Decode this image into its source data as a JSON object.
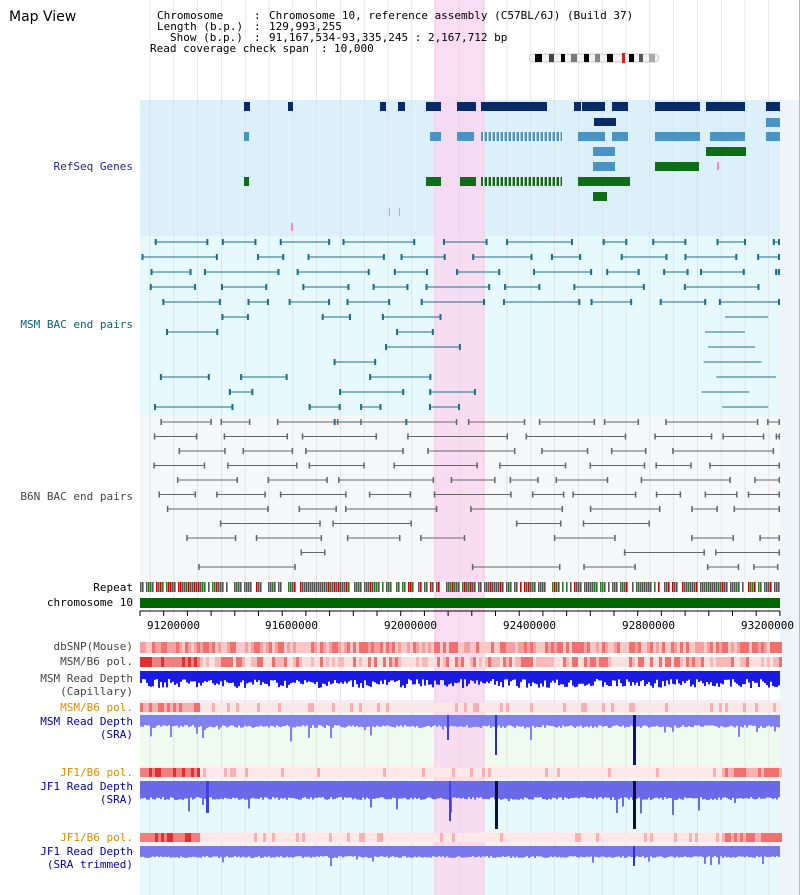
{
  "app": {
    "title": "Map View"
  },
  "info": {
    "chromosome_key": "Chromosome",
    "chromosome_value": "Chromosome 10, reference assembly (C57BL/6J) (Build 37)",
    "length_key": "Length (b.p.)",
    "length_value": "129,993,255",
    "show_key": "Show (b.p.)",
    "show_value": "91,167,534-93,335,245 : 2,167,712 bp",
    "span_key": "Read coverage check span",
    "span_value": "10,000"
  },
  "tracks": {
    "refseq": "RefSeq Genes",
    "msm_bac": "MSM BAC end pairs",
    "b6n_bac": "B6N BAC end pairs",
    "repeat": "Repeat",
    "chromosome": "chromosome 10",
    "dbsnp": "dbSNP(Mouse)",
    "msm_b6_pol1": "MSM/B6 pol.",
    "msm_depth_cap_1": "MSM Read Depth",
    "msm_depth_cap_2": "(Capillary)",
    "msm_b6_pol2": "MSM/B6 pol.",
    "msm_depth_sra_1": "MSM Read Depth",
    "msm_depth_sra_2": "(SRA)",
    "jf1_b6_pol1": "JF1/B6 pol.",
    "jf1_depth_sra_1": "JF1 Read Depth",
    "jf1_depth_sra_2": "(SRA)",
    "jf1_b6_pol2": "JF1/B6 pol.",
    "jf1_depth_trim_1": "JF1 Read Depth",
    "jf1_depth_trim_2": "(SRA trimmed)"
  },
  "axis": {
    "ticks": [
      "91200000",
      "91600000",
      "92000000",
      "92400000",
      "92800000",
      "93200000"
    ]
  },
  "colors": {
    "refseq_bg": "#dcf0fa",
    "msm_bac_bg": "#e6fafd",
    "b6n_bac_bg": "#f6f7f8",
    "highlight": "#f9d7f0",
    "gene_dark": "#0a2a66",
    "gene_mid": "#4a93c2",
    "gene_green": "#0e6e16",
    "msm_bac_line": "#1d6d8a",
    "b6n_bac_line": "#666666",
    "label_navy": "#1a2a8a",
    "label_teal": "#0b5e7e",
    "label_orange": "#e08a00",
    "label_blue": "#0000aa"
  }
}
